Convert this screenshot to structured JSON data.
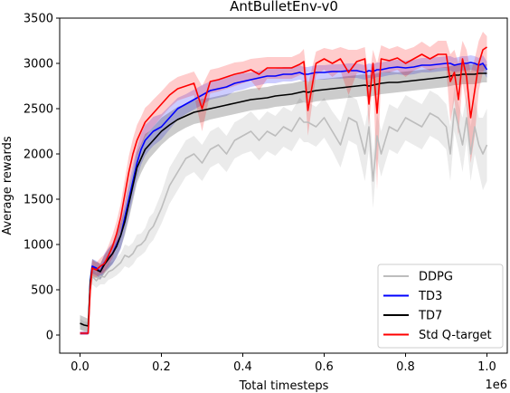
{
  "chart_data": {
    "type": "line",
    "title": "AntBulletEnv-v0",
    "xlabel": "Total timesteps",
    "ylabel": "Average rewards",
    "x_offset_label": "1e6",
    "xlim": [
      -0.05,
      1.05
    ],
    "ylim": [
      -200,
      3500
    ],
    "x_ticks": [
      0.0,
      0.2,
      0.4,
      0.6,
      0.8,
      1.0
    ],
    "x_tick_labels": [
      "0.0",
      "0.2",
      "0.4",
      "0.6",
      "0.8",
      "1.0"
    ],
    "y_ticks": [
      0,
      500,
      1000,
      1500,
      2000,
      2500,
      3000,
      3500
    ],
    "y_tick_labels": [
      "0",
      "500",
      "1000",
      "1500",
      "2000",
      "2500",
      "3000",
      "3500"
    ],
    "grid": false,
    "legend_position": "lower right",
    "x": [
      0.0,
      0.01,
      0.02,
      0.025,
      0.03,
      0.04,
      0.05,
      0.06,
      0.07,
      0.08,
      0.09,
      0.1,
      0.11,
      0.12,
      0.13,
      0.14,
      0.15,
      0.16,
      0.17,
      0.18,
      0.2,
      0.22,
      0.24,
      0.26,
      0.28,
      0.3,
      0.32,
      0.34,
      0.36,
      0.38,
      0.4,
      0.42,
      0.44,
      0.46,
      0.48,
      0.5,
      0.52,
      0.54,
      0.55,
      0.56,
      0.58,
      0.6,
      0.62,
      0.64,
      0.66,
      0.68,
      0.7,
      0.71,
      0.72,
      0.73,
      0.74,
      0.76,
      0.78,
      0.8,
      0.82,
      0.84,
      0.86,
      0.88,
      0.9,
      0.91,
      0.92,
      0.93,
      0.94,
      0.95,
      0.96,
      0.97,
      0.98,
      0.99,
      1.0
    ],
    "series": [
      {
        "name": "DDPG",
        "color": "#bdbdbd",
        "band_color": "#bdbdbd",
        "band_opacity": 0.3,
        "values": [
          120,
          100,
          90,
          500,
          650,
          600,
          650,
          640,
          700,
          720,
          760,
          800,
          880,
          860,
          900,
          980,
          1000,
          1050,
          1150,
          1200,
          1400,
          1650,
          1800,
          1950,
          2000,
          1900,
          2050,
          2100,
          2000,
          2150,
          2200,
          2250,
          2150,
          2250,
          2200,
          2300,
          2250,
          2400,
          2350,
          2350,
          2300,
          2400,
          2250,
          2100,
          2400,
          2350,
          2000,
          2300,
          1700,
          2200,
          2000,
          2300,
          2250,
          2400,
          2350,
          2300,
          2450,
          2400,
          2300,
          2000,
          2500,
          2300,
          2100,
          2400,
          2000,
          2300,
          2100,
          2000,
          2100
        ],
        "lower": [
          60,
          50,
          40,
          400,
          560,
          520,
          560,
          560,
          610,
          630,
          660,
          700,
          760,
          740,
          780,
          850,
          880,
          920,
          1000,
          1050,
          1230,
          1450,
          1600,
          1750,
          1800,
          1700,
          1850,
          1900,
          1800,
          1950,
          2000,
          2030,
          1930,
          2030,
          1980,
          2080,
          2030,
          2180,
          2130,
          2130,
          2080,
          2180,
          2030,
          1850,
          2150,
          2100,
          1700,
          2050,
          1400,
          1950,
          1750,
          2050,
          2000,
          2150,
          2100,
          2050,
          2200,
          2150,
          2050,
          1700,
          2250,
          2050,
          1800,
          2150,
          1700,
          2000,
          1800,
          1600,
          1700
        ],
        "upper": [
          180,
          150,
          140,
          600,
          740,
          680,
          740,
          720,
          790,
          810,
          860,
          900,
          1000,
          980,
          1020,
          1110,
          1120,
          1180,
          1300,
          1350,
          1570,
          1850,
          2000,
          2150,
          2200,
          2100,
          2250,
          2300,
          2200,
          2350,
          2400,
          2470,
          2370,
          2470,
          2420,
          2520,
          2470,
          2620,
          2570,
          2570,
          2520,
          2620,
          2470,
          2350,
          2650,
          2600,
          2300,
          2550,
          2000,
          2450,
          2250,
          2550,
          2500,
          2650,
          2600,
          2550,
          2700,
          2650,
          2550,
          2300,
          2750,
          2550,
          2400,
          2650,
          2300,
          2600,
          2400,
          2400,
          2500
        ]
      },
      {
        "name": "TD3",
        "color": "#0000ff",
        "band_color": "#0000ff",
        "band_opacity": 0.2,
        "values": [
          20,
          20,
          20,
          600,
          760,
          740,
          700,
          800,
          850,
          900,
          1000,
          1100,
          1300,
          1500,
          1700,
          1900,
          2050,
          2150,
          2200,
          2250,
          2300,
          2400,
          2500,
          2550,
          2600,
          2650,
          2700,
          2720,
          2740,
          2780,
          2800,
          2820,
          2840,
          2860,
          2860,
          2880,
          2880,
          2900,
          2880,
          2880,
          2900,
          2900,
          2910,
          2910,
          2920,
          2920,
          2900,
          2920,
          2910,
          2930,
          2930,
          2950,
          2960,
          2950,
          2960,
          2980,
          2980,
          2990,
          3000,
          3000,
          2980,
          2990,
          3000,
          3000,
          3010,
          3000,
          2980,
          3000,
          2930
        ],
        "lower": [
          0,
          0,
          0,
          520,
          680,
          660,
          620,
          700,
          740,
          780,
          860,
          950,
          1130,
          1320,
          1520,
          1730,
          1880,
          1980,
          2040,
          2090,
          2160,
          2270,
          2380,
          2440,
          2490,
          2540,
          2600,
          2620,
          2640,
          2690,
          2710,
          2740,
          2760,
          2780,
          2780,
          2800,
          2800,
          2820,
          2800,
          2800,
          2820,
          2820,
          2830,
          2830,
          2840,
          2840,
          2820,
          2840,
          2830,
          2850,
          2850,
          2870,
          2880,
          2870,
          2880,
          2900,
          2900,
          2910,
          2920,
          2920,
          2900,
          2910,
          2920,
          2920,
          2930,
          2920,
          2900,
          2910,
          2840
        ],
        "upper": [
          40,
          40,
          40,
          680,
          840,
          820,
          780,
          900,
          960,
          1020,
          1140,
          1250,
          1470,
          1680,
          1880,
          2070,
          2220,
          2320,
          2360,
          2410,
          2440,
          2530,
          2620,
          2660,
          2710,
          2760,
          2800,
          2820,
          2840,
          2870,
          2890,
          2900,
          2920,
          2940,
          2940,
          2960,
          2960,
          2980,
          2960,
          2960,
          2980,
          2980,
          2990,
          2990,
          3000,
          3000,
          2980,
          3000,
          2990,
          3010,
          3010,
          3030,
          3040,
          3030,
          3040,
          3060,
          3060,
          3070,
          3080,
          3080,
          3060,
          3070,
          3080,
          3080,
          3090,
          3080,
          3060,
          3090,
          3020
        ]
      },
      {
        "name": "TD7",
        "color": "#000000",
        "band_color": "#000000",
        "band_opacity": 0.2,
        "values": [
          130,
          110,
          100,
          580,
          740,
          720,
          700,
          780,
          840,
          900,
          980,
          1100,
          1250,
          1450,
          1650,
          1850,
          1950,
          2050,
          2100,
          2150,
          2250,
          2320,
          2380,
          2420,
          2460,
          2480,
          2500,
          2520,
          2540,
          2560,
          2580,
          2600,
          2610,
          2620,
          2640,
          2650,
          2660,
          2680,
          2690,
          2680,
          2700,
          2710,
          2720,
          2730,
          2740,
          2750,
          2760,
          2750,
          2760,
          2770,
          2780,
          2790,
          2790,
          2800,
          2810,
          2820,
          2830,
          2840,
          2850,
          2860,
          2870,
          2870,
          2880,
          2880,
          2880,
          2880,
          2890,
          2890,
          2890
        ],
        "lower": [
          60,
          40,
          40,
          480,
          640,
          630,
          610,
          680,
          730,
          790,
          860,
          960,
          1100,
          1280,
          1480,
          1680,
          1790,
          1880,
          1950,
          2000,
          2100,
          2180,
          2240,
          2290,
          2330,
          2350,
          2380,
          2400,
          2420,
          2440,
          2460,
          2480,
          2490,
          2500,
          2520,
          2530,
          2540,
          2560,
          2570,
          2560,
          2580,
          2590,
          2600,
          2610,
          2620,
          2630,
          2640,
          2630,
          2640,
          2650,
          2660,
          2670,
          2680,
          2690,
          2700,
          2710,
          2720,
          2730,
          2740,
          2750,
          2760,
          2760,
          2770,
          2770,
          2770,
          2770,
          2780,
          2790,
          2790
        ],
        "upper": [
          220,
          200,
          180,
          680,
          840,
          810,
          790,
          880,
          950,
          1010,
          1100,
          1240,
          1400,
          1620,
          1820,
          2020,
          2110,
          2220,
          2250,
          2300,
          2400,
          2460,
          2520,
          2550,
          2590,
          2610,
          2620,
          2640,
          2660,
          2680,
          2700,
          2720,
          2730,
          2740,
          2760,
          2770,
          2780,
          2800,
          2810,
          2800,
          2820,
          2830,
          2840,
          2850,
          2860,
          2870,
          2880,
          2870,
          2880,
          2890,
          2900,
          2910,
          2900,
          2910,
          2920,
          2930,
          2940,
          2950,
          2960,
          2970,
          2980,
          2980,
          2990,
          2990,
          2990,
          2990,
          3000,
          2990,
          2990
        ]
      },
      {
        "name": "Std Q-target",
        "color": "#ff0000",
        "band_color": "#ff0000",
        "band_opacity": 0.2,
        "values": [
          20,
          20,
          20,
          500,
          740,
          720,
          760,
          790,
          880,
          980,
          1120,
          1300,
          1550,
          1800,
          2000,
          2150,
          2250,
          2350,
          2400,
          2450,
          2550,
          2650,
          2720,
          2750,
          2780,
          2500,
          2800,
          2820,
          2850,
          2880,
          2900,
          2930,
          2880,
          2950,
          2950,
          2950,
          2950,
          2990,
          3020,
          2480,
          3000,
          3050,
          3000,
          3050,
          2900,
          3020,
          3050,
          2550,
          3000,
          2450,
          3050,
          3030,
          3060,
          3000,
          3050,
          3100,
          3050,
          3100,
          3100,
          2800,
          2900,
          2600,
          3050,
          2850,
          2400,
          2700,
          3000,
          3150,
          3180
        ],
        "lower": [
          0,
          0,
          0,
          410,
          650,
          640,
          670,
          690,
          770,
          850,
          980,
          1150,
          1380,
          1620,
          1830,
          1980,
          2090,
          2190,
          2250,
          2300,
          2410,
          2510,
          2590,
          2620,
          2650,
          2250,
          2670,
          2690,
          2720,
          2750,
          2780,
          2810,
          2700,
          2830,
          2830,
          2830,
          2830,
          2870,
          2880,
          2200,
          2870,
          2930,
          2850,
          2920,
          2650,
          2890,
          2920,
          2300,
          2850,
          1600,
          2900,
          2900,
          2930,
          2850,
          2920,
          2960,
          2920,
          2950,
          2950,
          2350,
          2600,
          2200,
          2800,
          2500,
          1900,
          2200,
          2700,
          2900,
          2980
        ],
        "upper": [
          40,
          40,
          40,
          590,
          830,
          800,
          850,
          890,
          990,
          1110,
          1260,
          1450,
          1720,
          1980,
          2170,
          2320,
          2410,
          2510,
          2550,
          2600,
          2690,
          2790,
          2850,
          2880,
          2910,
          2750,
          2930,
          2950,
          2980,
          3010,
          3020,
          3050,
          3060,
          3070,
          3070,
          3070,
          3070,
          3110,
          3160,
          2760,
          3130,
          3170,
          3150,
          3180,
          3150,
          3150,
          3180,
          2800,
          3150,
          3000,
          3200,
          3160,
          3190,
          3150,
          3180,
          3240,
          3180,
          3250,
          3250,
          3100,
          3150,
          3000,
          3250,
          3150,
          2900,
          3050,
          3250,
          3350,
          3300
        ]
      }
    ]
  }
}
